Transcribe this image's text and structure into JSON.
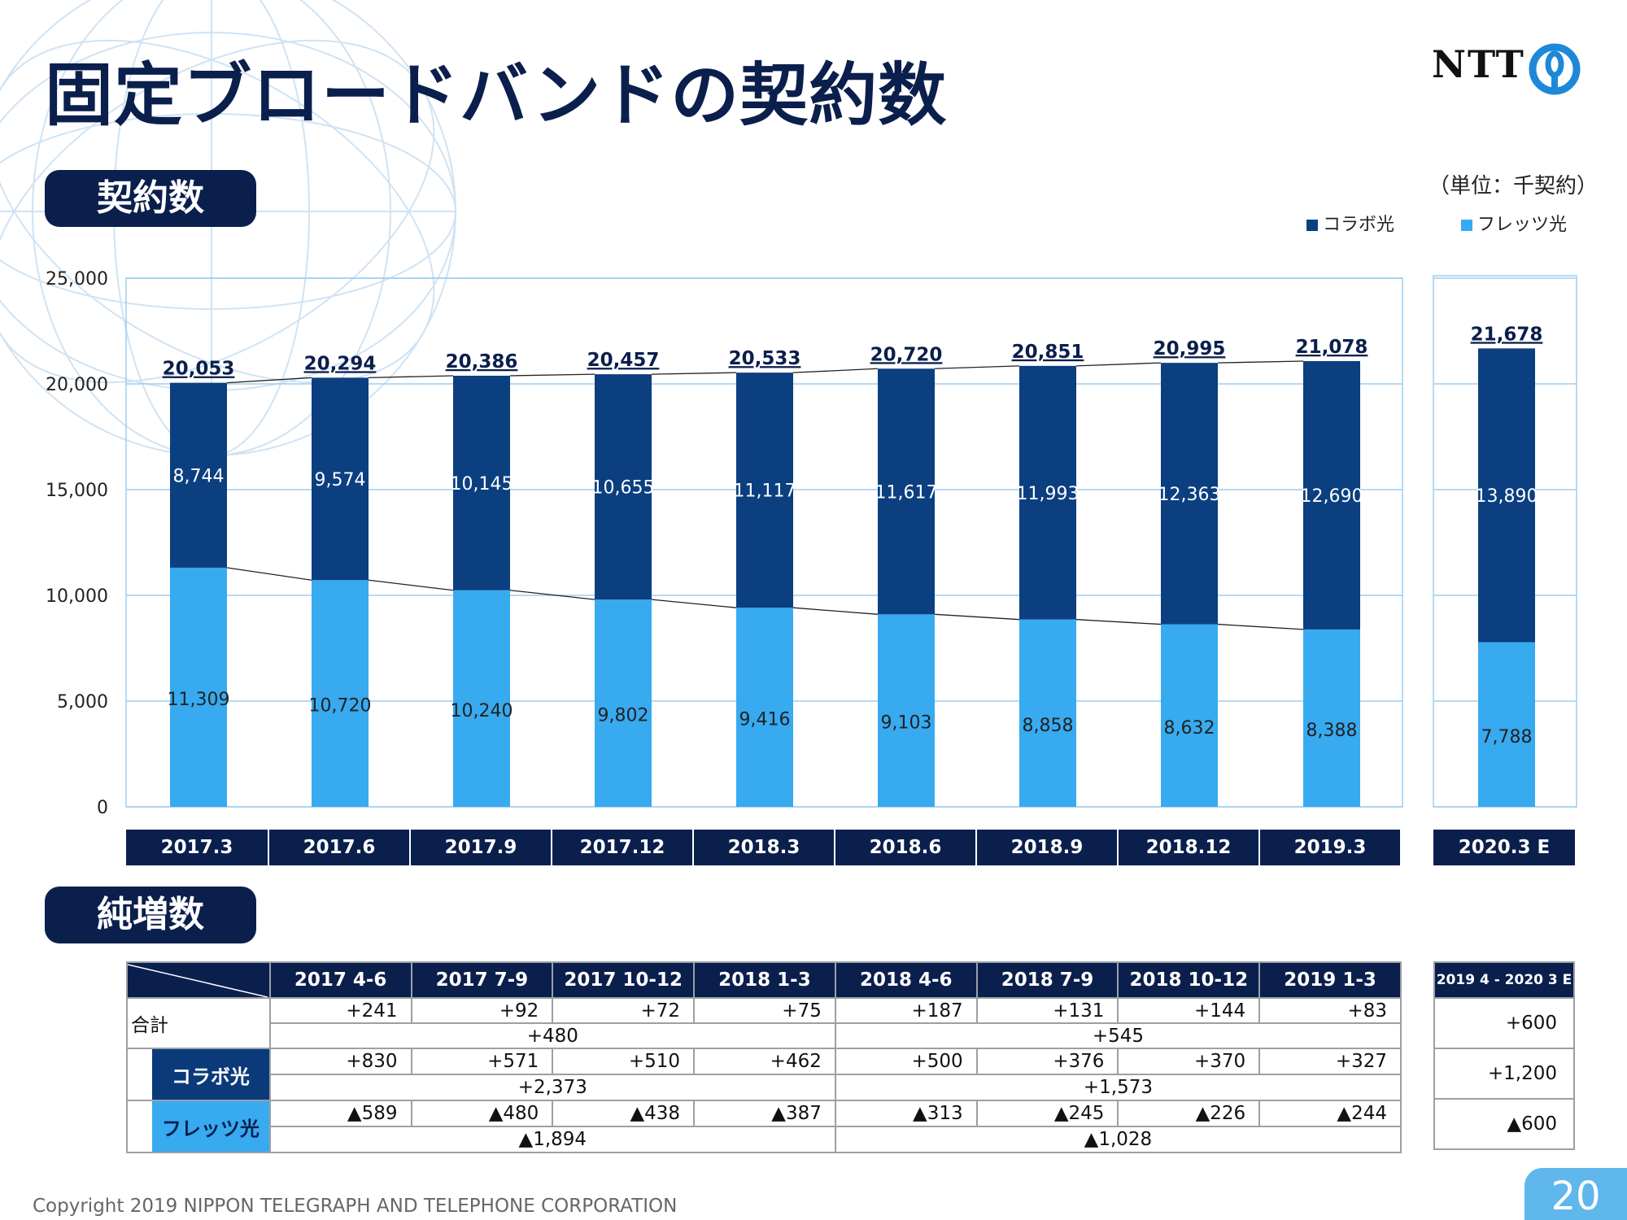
{
  "page": {
    "title": "固定ブロードバンドの契約数",
    "section1": "契約数",
    "section2": "純増数",
    "unit_note": "（単位：千契約）",
    "copyright": "Copyright 2019 NIPPON TELEGRAPH AND TELEPHONE CORPORATION",
    "page_number": "20",
    "logo_text": "NTT"
  },
  "colors": {
    "navy": "#0b1f4d",
    "kollabo": "#0b3f80",
    "flets": "#37aaf0",
    "grid": "#9dcdf0"
  },
  "chart_data": {
    "type": "bar",
    "stacked": true,
    "categories": [
      "2017.3",
      "2017.6",
      "2017.9",
      "2017.12",
      "2018.3",
      "2018.6",
      "2018.9",
      "2018.12",
      "2019.3",
      "2020.3 E"
    ],
    "series": [
      {
        "name": "フレッツ光",
        "values": [
          11309,
          10720,
          10240,
          9802,
          9416,
          9103,
          8858,
          8632,
          8388,
          7788
        ]
      },
      {
        "name": "コラボ光",
        "values": [
          8744,
          9574,
          10145,
          10655,
          11117,
          11617,
          11993,
          12363,
          12690,
          13890
        ]
      }
    ],
    "totals": [
      20053,
      20294,
      20386,
      20457,
      20533,
      20720,
      20851,
      20995,
      21078,
      21678
    ],
    "series_labels": {
      "フレッツ光": [
        "11,309",
        "10,720",
        "10,240",
        "9,802",
        "9,416",
        "9,103",
        "8,858",
        "8,632",
        "8,388",
        "7,788"
      ],
      "コラボ光": [
        "8,744",
        "9,574",
        "10,145",
        "10,655",
        "11,117",
        "11,617",
        "11,993",
        "12,363",
        "12,690",
        "13,890"
      ]
    },
    "total_labels": [
      "20,053",
      "20,294",
      "20,386",
      "20,457",
      "20,533",
      "20,720",
      "20,851",
      "20,995",
      "21,078",
      "21,678"
    ],
    "ylim": [
      0,
      25000
    ],
    "yticks": [
      0,
      5000,
      10000,
      15000,
      20000,
      25000
    ],
    "ytick_labels": [
      "0",
      "5,000",
      "10,000",
      "15,000",
      "20,000",
      "25,000"
    ],
    "grid": true,
    "legend": {
      "position": "top-right",
      "items": [
        "コラボ光",
        "フレッツ光"
      ]
    }
  },
  "net_table": {
    "headers": [
      "2017 4-6",
      "2017 7-9",
      "2017 10-12",
      "2018 1-3",
      "2018 4-6",
      "2018 7-9",
      "2018 10-12",
      "2019 1-3"
    ],
    "rows": [
      {
        "label": "合計",
        "quarterly": [
          "+241",
          "+92",
          "+72",
          "+75",
          "+187",
          "+131",
          "+144",
          "+83"
        ],
        "annual": [
          "+480",
          "+545"
        ]
      },
      {
        "label": "コラボ光",
        "quarterly": [
          "+830",
          "+571",
          "+510",
          "+462",
          "+500",
          "+376",
          "+370",
          "+327"
        ],
        "annual": [
          "+2,373",
          "+1,573"
        ]
      },
      {
        "label": "フレッツ光",
        "quarterly": [
          "▲589",
          "▲480",
          "▲438",
          "▲387",
          "▲313",
          "▲245",
          "▲226",
          "▲244"
        ],
        "annual": [
          "▲1,894",
          "▲1,028"
        ]
      }
    ]
  },
  "forecast_table": {
    "header": "2019 4 - 2020 3 E",
    "values": [
      "+600",
      "+1,200",
      "▲600"
    ]
  }
}
